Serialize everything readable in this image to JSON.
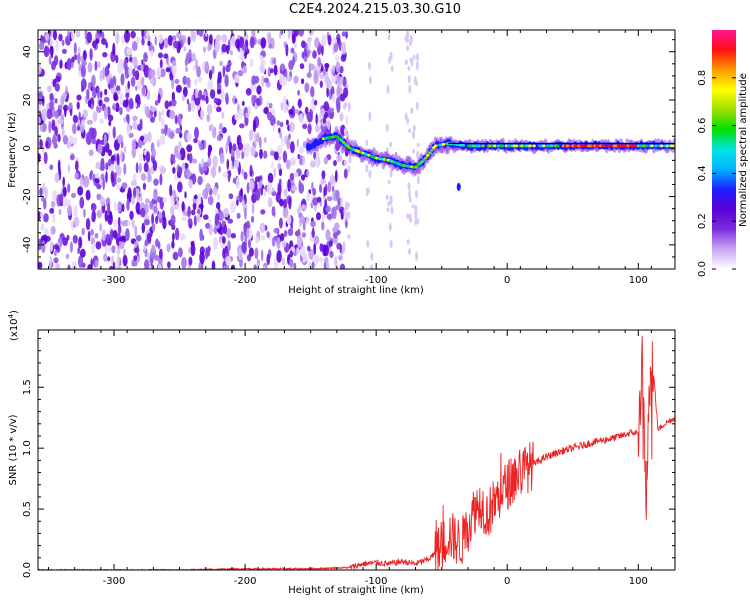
{
  "figure": {
    "title": "C2E4.2024.215.03.30.G10"
  },
  "chart_data": [
    {
      "type": "heatmap",
      "xlabel": "Height of straight line (km)",
      "ylabel": "Frequency (Hz)",
      "xlim": [
        -358,
        128
      ],
      "ylim": [
        -50,
        49
      ],
      "xticks": [
        -300,
        -200,
        -100,
        0,
        100
      ],
      "xtick_labels": [
        "-300",
        "-200",
        "-100",
        "0",
        "100"
      ],
      "yticks": [
        -40,
        -20,
        0,
        20,
        40
      ],
      "ytick_labels": [
        "-40",
        "-20",
        "0",
        "20",
        "40"
      ],
      "colorbar": {
        "label": "Normalized spectral amplitude",
        "range": [
          0.0,
          1.0
        ],
        "ticks": [
          0.0,
          0.2,
          0.4,
          0.6,
          0.8
        ],
        "tick_labels": [
          "0.0",
          "0.2",
          "0.4",
          "0.6",
          "0.8"
        ],
        "colormap": [
          "#ffffff",
          "#c9a6f2",
          "#7d2de0",
          "#5a00d6",
          "#1f1fff",
          "#00b4ff",
          "#00e5e5",
          "#00e000",
          "#a0e000",
          "#ffff00",
          "#ff9900",
          "#ff1010",
          "#ff1493"
        ]
      },
      "features": {
        "noise_region_x": [
          -358,
          -130
        ],
        "signal_track": [
          {
            "x": -152,
            "y": 0
          },
          {
            "x": -140,
            "y": 4
          },
          {
            "x": -130,
            "y": 5
          },
          {
            "x": -120,
            "y": 0
          },
          {
            "x": -110,
            "y": -2
          },
          {
            "x": -100,
            "y": -4
          },
          {
            "x": -90,
            "y": -5
          },
          {
            "x": -80,
            "y": -7
          },
          {
            "x": -70,
            "y": -8
          },
          {
            "x": -62,
            "y": -4
          },
          {
            "x": -55,
            "y": 1
          },
          {
            "x": -45,
            "y": 2
          },
          {
            "x": -30,
            "y": 1
          },
          {
            "x": -10,
            "y": 1
          },
          {
            "x": 20,
            "y": 1
          },
          {
            "x": 60,
            "y": 1
          },
          {
            "x": 100,
            "y": 1
          },
          {
            "x": 128,
            "y": 1
          }
        ],
        "steady_line_y": 2
      }
    },
    {
      "type": "line",
      "xlabel": "Height of straight line (km)",
      "ylabel": "SNR (10 * v/v)",
      "y_scale_label": "(x10",
      "y_scale_exp": "4",
      "y_scale_close": ")",
      "xlim": [
        -358,
        128
      ],
      "ylim": [
        0,
        1.97
      ],
      "xticks": [
        -300,
        -200,
        -100,
        0,
        100
      ],
      "xtick_labels": [
        "-300",
        "-200",
        "-100",
        "0",
        "100"
      ],
      "yticks": [
        0.0,
        0.5,
        1.0,
        1.5
      ],
      "ytick_labels": [
        "0.0",
        "0.5",
        "1.0",
        "1.5"
      ],
      "color": "#ee2222",
      "series": [
        {
          "x": [
            -358,
            -300,
            -250,
            -200,
            -150,
            -120,
            -110,
            -100,
            -90,
            -80,
            -70,
            -60,
            -50,
            -45,
            -40,
            -35,
            -30,
            -25,
            -20,
            -15,
            -10,
            -5,
            0,
            10,
            20,
            30,
            40,
            50,
            60,
            70,
            80,
            90,
            95,
            100,
            103,
            106,
            110,
            115,
            120,
            128
          ],
          "y": [
            0.0,
            0.0,
            0.0,
            0.01,
            0.01,
            0.02,
            0.05,
            0.06,
            0.05,
            0.07,
            0.05,
            0.09,
            0.18,
            0.3,
            0.25,
            0.22,
            0.35,
            0.5,
            0.55,
            0.45,
            0.55,
            0.62,
            0.7,
            0.8,
            0.87,
            0.93,
            0.97,
            1.0,
            1.03,
            1.06,
            1.08,
            1.11,
            1.13,
            1.12,
            1.7,
            0.62,
            1.85,
            1.15,
            1.2,
            1.25
          ]
        }
      ]
    }
  ]
}
